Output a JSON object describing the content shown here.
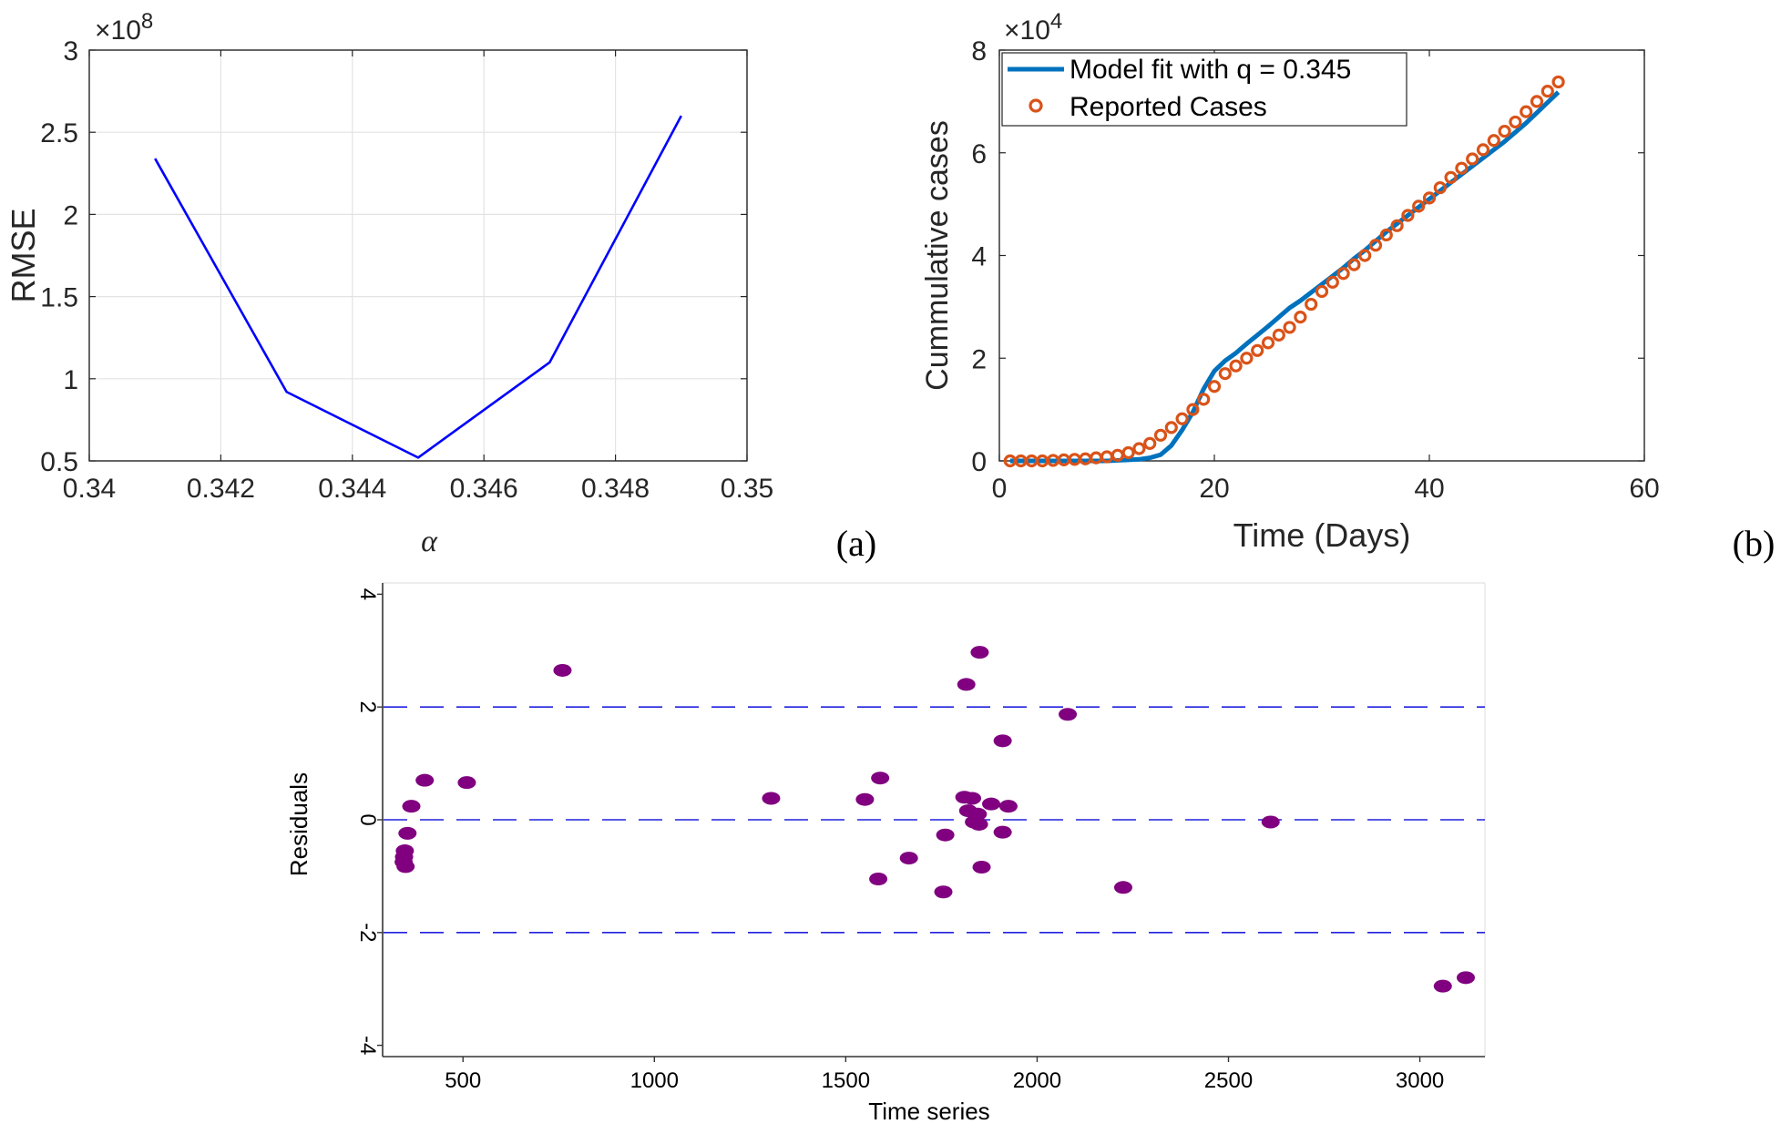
{
  "chart_data": [
    {
      "panel": "a",
      "panel_label": "(a)",
      "type": "line",
      "title": "",
      "xlabel": "α",
      "ylabel": "RMSE",
      "exponent_label": "×10",
      "exponent_power": "8",
      "xlim": [
        0.34,
        0.35
      ],
      "ylim": [
        0.5,
        3
      ],
      "xticks": [
        0.34,
        0.342,
        0.344,
        0.346,
        0.348,
        0.35
      ],
      "xtick_labels": [
        "0.34",
        "0.342",
        "0.344",
        "0.346",
        "0.348",
        "0.35"
      ],
      "yticks": [
        0.5,
        1,
        1.5,
        2,
        2.5,
        3
      ],
      "ytick_labels": [
        "0.5",
        "1",
        "1.5",
        "2",
        "2.5",
        "3"
      ],
      "grid": true,
      "series": [
        {
          "name": "RMSE",
          "color": "#0000ff",
          "x": [
            0.341,
            0.343,
            0.345,
            0.347,
            0.349
          ],
          "y": [
            2.34,
            0.92,
            0.52,
            1.1,
            2.6
          ]
        }
      ]
    },
    {
      "panel": "b",
      "panel_label": "(b)",
      "type": "line",
      "title": "",
      "xlabel": "Time (Days)",
      "ylabel": "Cummulative cases",
      "exponent_label": "×10",
      "exponent_power": "4",
      "xlim": [
        0,
        60
      ],
      "ylim": [
        0,
        8
      ],
      "xticks": [
        0,
        20,
        40,
        60
      ],
      "xtick_labels": [
        "0",
        "20",
        "40",
        "60"
      ],
      "yticks": [
        0,
        2,
        4,
        6,
        8
      ],
      "ytick_labels": [
        "0",
        "2",
        "4",
        "6",
        "8"
      ],
      "grid": false,
      "legend_position": "top-left",
      "series": [
        {
          "name": "Model fit with q = 0.345",
          "style": "line",
          "color": "#0072bd",
          "x": [
            1,
            2,
            3,
            4,
            5,
            6,
            7,
            8,
            9,
            10,
            11,
            12,
            13,
            14,
            15,
            16,
            17,
            18,
            19,
            20,
            21,
            22,
            23,
            24,
            25,
            26,
            27,
            28,
            29,
            30,
            31,
            32,
            33,
            34,
            35,
            36,
            37,
            38,
            39,
            40,
            41,
            42,
            43,
            44,
            45,
            46,
            47,
            48,
            49,
            50,
            51,
            52
          ],
          "y": [
            0,
            0,
            0,
            0,
            0,
            0,
            0,
            0,
            0,
            0,
            0.01,
            0.02,
            0.03,
            0.06,
            0.12,
            0.3,
            0.6,
            0.95,
            1.4,
            1.75,
            1.95,
            2.1,
            2.28,
            2.45,
            2.62,
            2.8,
            2.98,
            3.12,
            3.28,
            3.44,
            3.6,
            3.76,
            3.94,
            4.1,
            4.28,
            4.46,
            4.62,
            4.78,
            4.94,
            5.1,
            5.26,
            5.42,
            5.58,
            5.74,
            5.9,
            6.06,
            6.22,
            6.4,
            6.58,
            6.78,
            6.98,
            7.18
          ]
        },
        {
          "name": "Reported Cases",
          "style": "markers",
          "color": "#d95319",
          "x": [
            1,
            2,
            3,
            4,
            5,
            6,
            7,
            8,
            9,
            10,
            11,
            12,
            13,
            14,
            15,
            16,
            17,
            18,
            19,
            20,
            21,
            22,
            23,
            24,
            25,
            26,
            27,
            28,
            29,
            30,
            31,
            32,
            33,
            34,
            35,
            36,
            37,
            38,
            39,
            40,
            41,
            42,
            43,
            44,
            45,
            46,
            47,
            48,
            49,
            50,
            51,
            52
          ],
          "y": [
            0,
            0,
            0,
            0,
            0.01,
            0.02,
            0.03,
            0.04,
            0.06,
            0.08,
            0.11,
            0.16,
            0.24,
            0.34,
            0.5,
            0.65,
            0.82,
            1.0,
            1.2,
            1.45,
            1.7,
            1.85,
            2.0,
            2.15,
            2.3,
            2.45,
            2.6,
            2.8,
            3.05,
            3.3,
            3.48,
            3.65,
            3.82,
            4.0,
            4.2,
            4.4,
            4.58,
            4.78,
            4.96,
            5.12,
            5.32,
            5.52,
            5.7,
            5.88,
            6.06,
            6.24,
            6.42,
            6.6,
            6.8,
            7.0,
            7.2,
            7.38
          ]
        }
      ]
    },
    {
      "panel": "c",
      "type": "scatter",
      "title": "",
      "xlabel": "Time series",
      "ylabel": "Residuals",
      "xlim": [
        290,
        3170
      ],
      "ylim": [
        -4.2,
        4.2
      ],
      "xticks": [
        500,
        1000,
        1500,
        2000,
        2500,
        3000
      ],
      "xtick_labels": [
        "500",
        "1000",
        "1500",
        "2000",
        "2500",
        "3000"
      ],
      "yticks": [
        -4,
        -2,
        0,
        2,
        4
      ],
      "ytick_labels": [
        "-4",
        "-2",
        "0",
        "2",
        "4"
      ],
      "grid": false,
      "reference_lines": [
        2,
        0,
        -2
      ],
      "reference_line_color": "#2020dd",
      "marker_color": "#800080",
      "points": [
        {
          "x": 760,
          "y": 2.65
        },
        {
          "x": 1850,
          "y": 2.97
        },
        {
          "x": 1815,
          "y": 2.4
        },
        {
          "x": 2080,
          "y": 1.87
        },
        {
          "x": 1910,
          "y": 1.4
        },
        {
          "x": 400,
          "y": 0.7
        },
        {
          "x": 510,
          "y": 0.66
        },
        {
          "x": 1590,
          "y": 0.74
        },
        {
          "x": 1305,
          "y": 0.38
        },
        {
          "x": 1550,
          "y": 0.36
        },
        {
          "x": 365,
          "y": 0.24
        },
        {
          "x": 1810,
          "y": 0.4
        },
        {
          "x": 1830,
          "y": 0.38
        },
        {
          "x": 1880,
          "y": 0.28
        },
        {
          "x": 1925,
          "y": 0.24
        },
        {
          "x": 1820,
          "y": 0.16
        },
        {
          "x": 1845,
          "y": 0.1
        },
        {
          "x": 1835,
          "y": -0.04
        },
        {
          "x": 1848,
          "y": -0.08
        },
        {
          "x": 2610,
          "y": -0.04
        },
        {
          "x": 355,
          "y": -0.24
        },
        {
          "x": 1760,
          "y": -0.27
        },
        {
          "x": 1910,
          "y": -0.22
        },
        {
          "x": 348,
          "y": -0.55
        },
        {
          "x": 346,
          "y": -0.66
        },
        {
          "x": 345,
          "y": -0.75
        },
        {
          "x": 350,
          "y": -0.83
        },
        {
          "x": 1665,
          "y": -0.68
        },
        {
          "x": 1855,
          "y": -0.84
        },
        {
          "x": 1585,
          "y": -1.05
        },
        {
          "x": 1755,
          "y": -1.28
        },
        {
          "x": 2225,
          "y": -1.2
        },
        {
          "x": 3060,
          "y": -2.95
        },
        {
          "x": 3120,
          "y": -2.8
        }
      ]
    }
  ]
}
